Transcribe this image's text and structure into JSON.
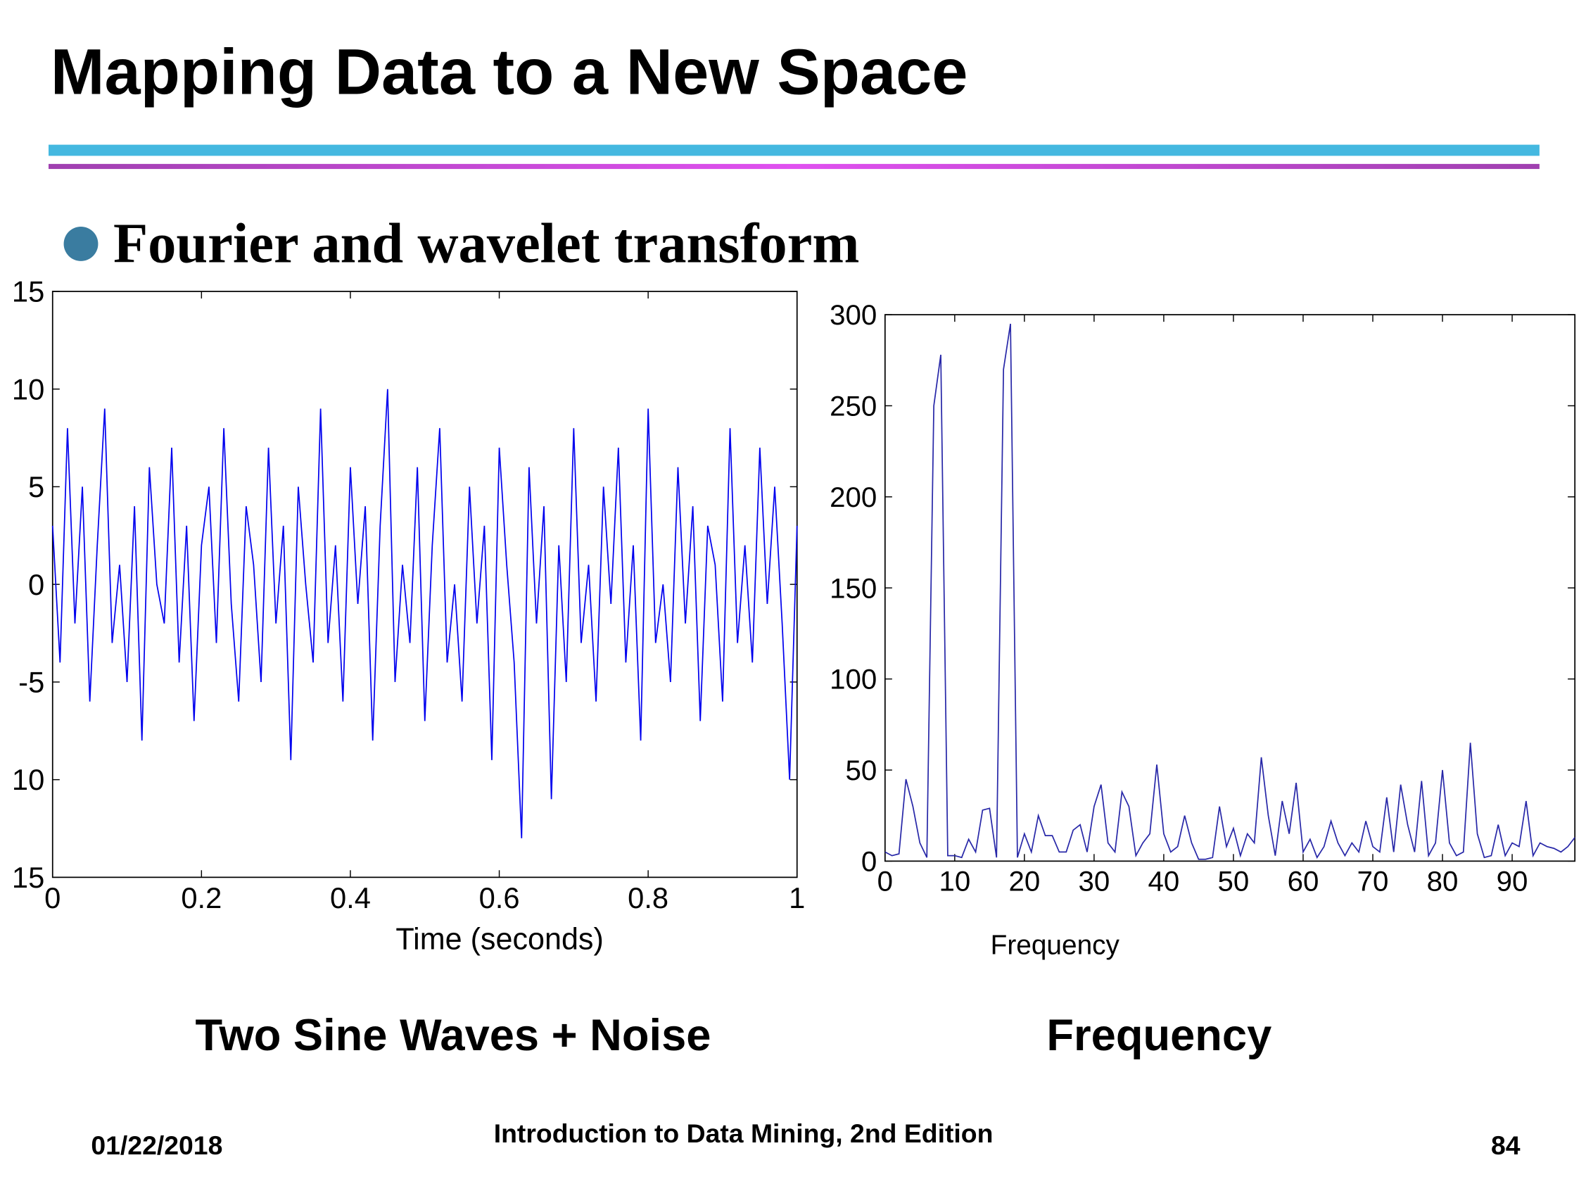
{
  "header": {
    "title": "Mapping Data to a New Space"
  },
  "bullet": "Fourier and wavelet transform",
  "captions": [
    "Two Sine Waves + Noise",
    "Frequency"
  ],
  "footer": {
    "date": "01/22/2018",
    "source": "Introduction to Data Mining, 2nd Edition",
    "page": "84"
  },
  "chart_data": [
    {
      "type": "line",
      "x_label": "Time (seconds)",
      "color": "#0000ee",
      "x": [
        0,
        0.01,
        0.02,
        0.03,
        0.04,
        0.05,
        0.06,
        0.07,
        0.08,
        0.09,
        0.1,
        0.11,
        0.12,
        0.13,
        0.14,
        0.15,
        0.16,
        0.17,
        0.18,
        0.19,
        0.2,
        0.21,
        0.22,
        0.23,
        0.24,
        0.25,
        0.26,
        0.27,
        0.28,
        0.29,
        0.3,
        0.31,
        0.32,
        0.33,
        0.34,
        0.35,
        0.36,
        0.37,
        0.38,
        0.39,
        0.4,
        0.41,
        0.42,
        0.43,
        0.44,
        0.45,
        0.46,
        0.47,
        0.48,
        0.49,
        0.5,
        0.51,
        0.52,
        0.53,
        0.54,
        0.55,
        0.56,
        0.57,
        0.58,
        0.59,
        0.6,
        0.61,
        0.62,
        0.63,
        0.64,
        0.65,
        0.66,
        0.67,
        0.68,
        0.69,
        0.7,
        0.71,
        0.72,
        0.73,
        0.74,
        0.75,
        0.76,
        0.77,
        0.78,
        0.79,
        0.8,
        0.81,
        0.82,
        0.83,
        0.84,
        0.85,
        0.86,
        0.87,
        0.88,
        0.89,
        0.9,
        0.91,
        0.92,
        0.93,
        0.94,
        0.95,
        0.96,
        0.97,
        0.98,
        0.99,
        1
      ],
      "values": [
        3,
        -4,
        8,
        -2,
        5,
        -6,
        2,
        9,
        -3,
        1,
        -5,
        4,
        -8,
        6,
        0,
        -2,
        7,
        -4,
        3,
        -7,
        2,
        5,
        -3,
        8,
        -1,
        -6,
        4,
        1,
        -5,
        7,
        -2,
        3,
        -9,
        5,
        0,
        -4,
        9,
        -3,
        2,
        -6,
        6,
        -1,
        4,
        -8,
        3,
        10,
        -5,
        1,
        -3,
        6,
        -7,
        2,
        8,
        -4,
        0,
        -6,
        5,
        -2,
        3,
        -9,
        7,
        1,
        -4,
        -13,
        6,
        -2,
        4,
        -11,
        2,
        -5,
        8,
        -3,
        1,
        -6,
        5,
        -1,
        7,
        -4,
        2,
        -8,
        9,
        -3,
        0,
        -5,
        6,
        -2,
        4,
        -7,
        3,
        1,
        -6,
        8,
        -3,
        2,
        -4,
        7,
        -1,
        5,
        -2,
        -10,
        3
      ],
      "xlim": [
        0,
        1
      ],
      "xticks": [
        0,
        0.2,
        0.4,
        0.6,
        0.8,
        1
      ],
      "ylim": [
        -15,
        15
      ],
      "yticks": [
        {
          "value": -15,
          "label": "15"
        },
        {
          "value": -10,
          "label": "10"
        },
        -5,
        0,
        5,
        10,
        15
      ]
    },
    {
      "type": "line",
      "x_label": "Frequency",
      "color": "#2828a8",
      "x": [
        0,
        1,
        2,
        3,
        4,
        5,
        6,
        7,
        8,
        9,
        10,
        11,
        12,
        13,
        14,
        15,
        16,
        17,
        18,
        19,
        20,
        21,
        22,
        23,
        24,
        25,
        26,
        27,
        28,
        29,
        30,
        31,
        32,
        33,
        34,
        35,
        36,
        37,
        38,
        39,
        40,
        41,
        42,
        43,
        44,
        45,
        46,
        47,
        48,
        49,
        50,
        51,
        52,
        53,
        54,
        55,
        56,
        57,
        58,
        59,
        60,
        61,
        62,
        63,
        64,
        65,
        66,
        67,
        68,
        69,
        70,
        71,
        72,
        73,
        74,
        75,
        76,
        77,
        78,
        79,
        80,
        81,
        82,
        83,
        84,
        85,
        86,
        87,
        88,
        89,
        90,
        91,
        92,
        93,
        94,
        95,
        96,
        97,
        98,
        99
      ],
      "values": [
        5,
        3,
        4,
        45,
        30,
        10,
        2,
        250,
        278,
        3,
        3,
        2,
        12,
        5,
        28,
        29,
        2,
        270,
        295,
        2,
        15,
        5,
        25,
        14,
        14,
        5,
        5,
        17,
        20,
        5,
        30,
        42,
        10,
        5,
        38,
        30,
        3,
        10,
        15,
        53,
        15,
        5,
        8,
        25,
        10,
        1,
        1,
        2,
        30,
        8,
        18,
        3,
        15,
        10,
        57,
        25,
        3,
        33,
        15,
        43,
        5,
        12,
        2,
        8,
        22,
        10,
        3,
        10,
        5,
        22,
        8,
        5,
        35,
        5,
        42,
        20,
        5,
        44,
        3,
        10,
        50,
        10,
        3,
        5,
        65,
        15,
        2,
        3,
        20,
        3,
        10,
        8,
        33,
        3,
        10,
        8,
        7,
        5,
        8,
        13
      ],
      "xlim": [
        0,
        99
      ],
      "xticks": [
        0,
        10,
        20,
        30,
        40,
        50,
        60,
        70,
        80,
        90
      ],
      "ylim": [
        0,
        300
      ],
      "yticks": [
        0,
        50,
        100,
        150,
        200,
        250,
        300
      ]
    }
  ]
}
